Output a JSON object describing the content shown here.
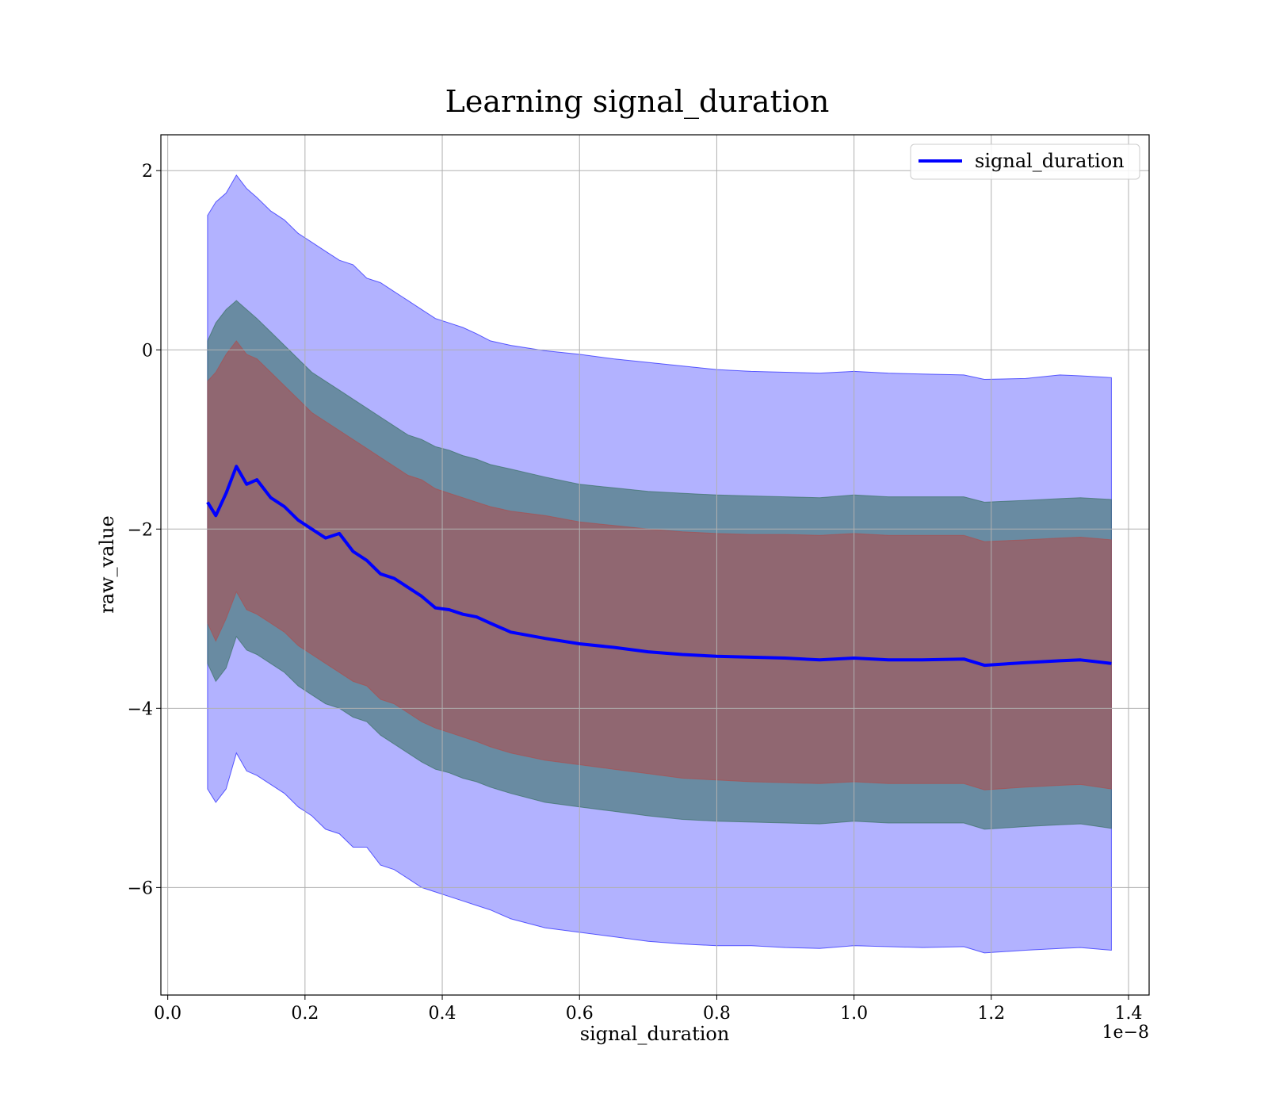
{
  "chart_data": {
    "type": "line",
    "title": "Learning signal_duration",
    "xlabel": "signal_duration",
    "ylabel": "raw_value",
    "x_offset_label": "1e−8",
    "xlim": [
      -0.01,
      1.43
    ],
    "ylim": [
      -7.2,
      2.4
    ],
    "x_ticks": [
      0.0,
      0.2,
      0.4,
      0.6,
      0.8,
      1.0,
      1.2,
      1.4
    ],
    "x_tick_labels": [
      "0.0",
      "0.2",
      "0.4",
      "0.6",
      "0.8",
      "1.0",
      "1.2",
      "1.4"
    ],
    "y_ticks": [
      2,
      0,
      -2,
      -4,
      -6
    ],
    "y_tick_labels": [
      "2",
      "0",
      "−2",
      "−4",
      "−6"
    ],
    "grid": true,
    "legend_position": "top-right",
    "x": [
      0.058,
      0.07,
      0.085,
      0.1,
      0.115,
      0.13,
      0.15,
      0.17,
      0.19,
      0.21,
      0.23,
      0.25,
      0.27,
      0.29,
      0.31,
      0.33,
      0.35,
      0.37,
      0.39,
      0.41,
      0.43,
      0.45,
      0.47,
      0.5,
      0.55,
      0.6,
      0.65,
      0.7,
      0.75,
      0.8,
      0.85,
      0.9,
      0.95,
      1.0,
      1.05,
      1.1,
      1.16,
      1.19,
      1.25,
      1.3,
      1.33,
      1.375
    ],
    "series": [
      {
        "name": "signal_duration",
        "color": "#0000ff",
        "values": [
          -1.7,
          -1.85,
          -1.6,
          -1.3,
          -1.5,
          -1.45,
          -1.65,
          -1.75,
          -1.9,
          -2.0,
          -2.1,
          -2.05,
          -2.25,
          -2.35,
          -2.5,
          -2.55,
          -2.65,
          -2.75,
          -2.88,
          -2.9,
          -2.95,
          -2.98,
          -3.05,
          -3.15,
          -3.22,
          -3.28,
          -3.32,
          -3.37,
          -3.4,
          -3.42,
          -3.43,
          -3.44,
          -3.46,
          -3.44,
          -3.46,
          -3.46,
          -3.45,
          -3.52,
          -3.49,
          -3.47,
          -3.46,
          -3.5
        ]
      }
    ],
    "bands": [
      {
        "color": "#0000ff",
        "opacity": 0.3,
        "upper": [
          1.5,
          1.65,
          1.75,
          1.95,
          1.8,
          1.7,
          1.55,
          1.45,
          1.3,
          1.2,
          1.1,
          1.0,
          0.95,
          0.8,
          0.75,
          0.65,
          0.55,
          0.45,
          0.35,
          0.3,
          0.25,
          0.18,
          0.1,
          0.05,
          -0.01,
          -0.05,
          -0.1,
          -0.14,
          -0.18,
          -0.22,
          -0.24,
          -0.25,
          -0.26,
          -0.24,
          -0.26,
          -0.27,
          -0.28,
          -0.33,
          -0.32,
          -0.28,
          -0.29,
          -0.31
        ],
        "lower": [
          -4.9,
          -5.05,
          -4.9,
          -4.5,
          -4.7,
          -4.75,
          -4.85,
          -4.95,
          -5.1,
          -5.2,
          -5.35,
          -5.4,
          -5.55,
          -5.55,
          -5.75,
          -5.8,
          -5.9,
          -6.0,
          -6.05,
          -6.1,
          -6.15,
          -6.2,
          -6.25,
          -6.35,
          -6.45,
          -6.5,
          -6.55,
          -6.6,
          -6.63,
          -6.65,
          -6.65,
          -6.67,
          -6.68,
          -6.65,
          -6.66,
          -6.67,
          -6.66,
          -6.73,
          -6.7,
          -6.68,
          -6.67,
          -6.7
        ]
      },
      {
        "color": "#2e6b55",
        "opacity": 0.55,
        "upper": [
          0.1,
          0.3,
          0.45,
          0.55,
          0.45,
          0.35,
          0.2,
          0.05,
          -0.1,
          -0.25,
          -0.35,
          -0.45,
          -0.55,
          -0.65,
          -0.75,
          -0.85,
          -0.95,
          -1.0,
          -1.08,
          -1.12,
          -1.18,
          -1.22,
          -1.28,
          -1.33,
          -1.42,
          -1.5,
          -1.54,
          -1.58,
          -1.6,
          -1.62,
          -1.63,
          -1.64,
          -1.65,
          -1.62,
          -1.64,
          -1.64,
          -1.64,
          -1.7,
          -1.68,
          -1.66,
          -1.65,
          -1.67
        ],
        "lower": [
          -3.5,
          -3.7,
          -3.55,
          -3.2,
          -3.35,
          -3.4,
          -3.5,
          -3.6,
          -3.75,
          -3.85,
          -3.95,
          -4.0,
          -4.1,
          -4.15,
          -4.3,
          -4.4,
          -4.5,
          -4.6,
          -4.68,
          -4.72,
          -4.78,
          -4.82,
          -4.88,
          -4.95,
          -5.05,
          -5.1,
          -5.15,
          -5.2,
          -5.24,
          -5.26,
          -5.27,
          -5.28,
          -5.29,
          -5.26,
          -5.28,
          -5.28,
          -5.28,
          -5.35,
          -5.32,
          -5.3,
          -5.29,
          -5.34
        ]
      },
      {
        "color": "#b04a48",
        "opacity": 0.55,
        "upper": [
          -0.35,
          -0.25,
          -0.05,
          0.1,
          -0.05,
          -0.1,
          -0.25,
          -0.4,
          -0.55,
          -0.7,
          -0.8,
          -0.9,
          -1.0,
          -1.1,
          -1.2,
          -1.3,
          -1.4,
          -1.45,
          -1.55,
          -1.6,
          -1.65,
          -1.7,
          -1.75,
          -1.8,
          -1.85,
          -1.92,
          -1.96,
          -2.0,
          -2.03,
          -2.05,
          -2.06,
          -2.06,
          -2.07,
          -2.05,
          -2.07,
          -2.07,
          -2.07,
          -2.14,
          -2.12,
          -2.1,
          -2.09,
          -2.12
        ],
        "lower": [
          -3.05,
          -3.25,
          -3.0,
          -2.7,
          -2.9,
          -2.95,
          -3.05,
          -3.15,
          -3.3,
          -3.4,
          -3.5,
          -3.6,
          -3.7,
          -3.75,
          -3.9,
          -3.95,
          -4.05,
          -4.15,
          -4.22,
          -4.27,
          -4.32,
          -4.37,
          -4.43,
          -4.5,
          -4.58,
          -4.63,
          -4.68,
          -4.73,
          -4.78,
          -4.8,
          -4.82,
          -4.83,
          -4.84,
          -4.82,
          -4.84,
          -4.84,
          -4.84,
          -4.91,
          -4.88,
          -4.86,
          -4.85,
          -4.9
        ]
      }
    ]
  }
}
